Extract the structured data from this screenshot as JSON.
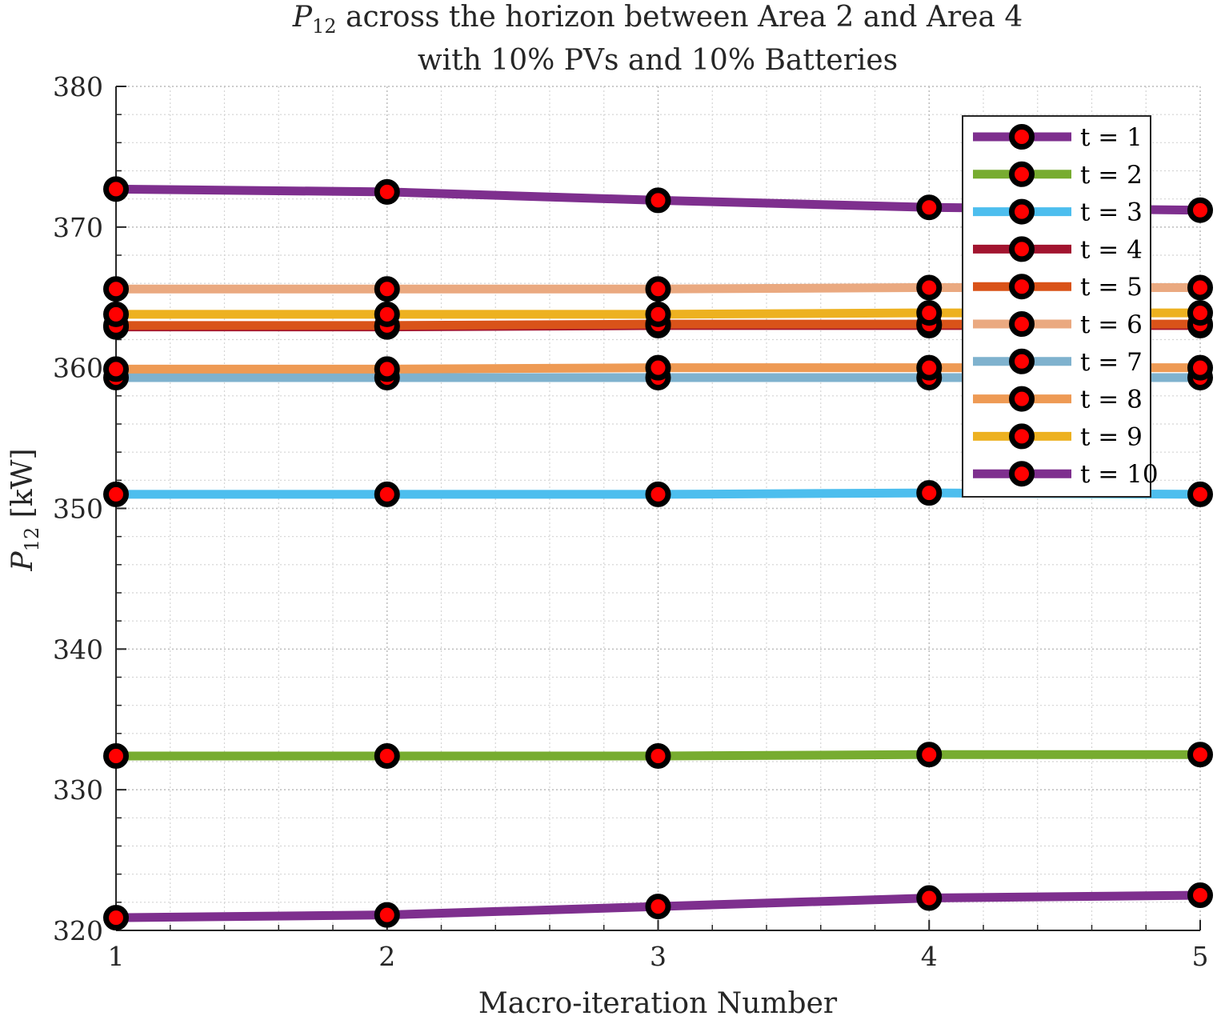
{
  "chart_data": {
    "type": "line",
    "title_symbol": "P",
    "title_subscript": "12",
    "title_line1_rest": " across the horizon between Area 2 and Area 4",
    "title_line2": "with 10% PVs and 10% Batteries",
    "xlabel": "Macro-iteration Number",
    "ylabel_symbol": "P",
    "ylabel_subscript": "12",
    "ylabel_unit": " [kW]",
    "xlim": [
      1,
      5
    ],
    "ylim": [
      320,
      380
    ],
    "x": [
      1,
      2,
      3,
      4,
      5
    ],
    "xticks": [
      "1",
      "2",
      "3",
      "4",
      "5"
    ],
    "yticks": [
      "320",
      "330",
      "340",
      "350",
      "360",
      "370",
      "380"
    ],
    "grid": true,
    "minor_grid": true,
    "legend_position": "top-right",
    "marker": {
      "edge_color": "#000000",
      "face_color": "#ff0000"
    },
    "series": [
      {
        "name": "t = 1",
        "color": "#7e2f8e",
        "values": [
          372.7,
          372.5,
          371.9,
          371.4,
          371.2
        ]
      },
      {
        "name": "t = 2",
        "color": "#77ac30",
        "values": [
          332.4,
          332.4,
          332.4,
          332.5,
          332.5
        ]
      },
      {
        "name": "t = 3",
        "color": "#4dbeee",
        "values": [
          351.0,
          351.0,
          351.0,
          351.1,
          351.0
        ]
      },
      {
        "name": "t = 4",
        "color": "#a2142f",
        "values": [
          362.9,
          362.9,
          363.0,
          363.0,
          363.0
        ]
      },
      {
        "name": "t = 5",
        "color": "#d95319",
        "values": [
          363.0,
          363.0,
          363.1,
          363.1,
          363.1
        ]
      },
      {
        "name": "t = 6",
        "color": "#eaa980",
        "values": [
          365.6,
          365.6,
          365.6,
          365.7,
          365.7
        ]
      },
      {
        "name": "t = 7",
        "color": "#7fb2ce",
        "values": [
          359.3,
          359.3,
          359.3,
          359.3,
          359.3
        ]
      },
      {
        "name": "t = 8",
        "color": "#ee9a54",
        "values": [
          359.9,
          359.9,
          360.0,
          360.0,
          360.0
        ]
      },
      {
        "name": "t = 9",
        "color": "#edb120",
        "values": [
          363.8,
          363.8,
          363.8,
          363.9,
          363.9
        ]
      },
      {
        "name": "t = 10",
        "color": "#7e2f8e",
        "values": [
          320.9,
          321.1,
          321.7,
          322.3,
          322.5
        ]
      }
    ]
  }
}
